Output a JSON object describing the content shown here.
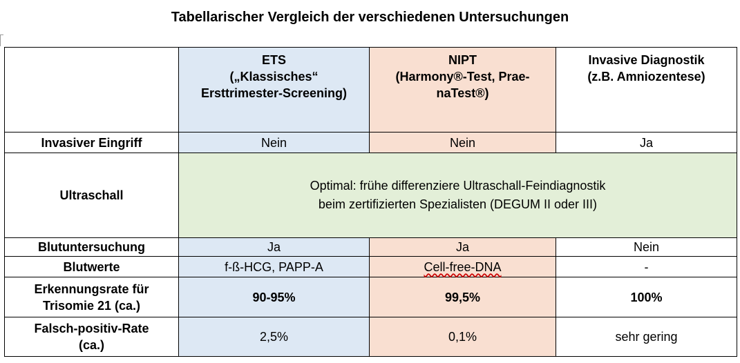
{
  "title": "Tabellarischer Vergleich der verschiedenen Untersuchungen",
  "colors": {
    "ets": "#dde8f4",
    "nipt": "#f9dfd1",
    "ultrasound": "#e3efd8"
  },
  "columns": {
    "ets": [
      "ETS",
      "(„Klassisches“",
      "Ersttrimester-Screening)"
    ],
    "nipt": [
      "NIPT",
      "(Harmony®-Test, Prae-",
      "naTest®)"
    ],
    "invasive": [
      "Invasive Diagnostik",
      "(z.B. Amniozentese)"
    ]
  },
  "rows": {
    "invasiver_eingriff": {
      "label": "Invasiver Eingriff",
      "ets": "Nein",
      "nipt": "Nein",
      "invasive": "Ja"
    },
    "ultraschall": {
      "label": "Ultraschall",
      "text": [
        "Optimal: frühe differenziere Ultraschall-Feindiagnostik",
        "beim zertifizierten Spezialisten (DEGUM II oder III)"
      ]
    },
    "blutuntersuchung": {
      "label": "Blutuntersuchung",
      "ets": "Ja",
      "nipt": "Ja",
      "invasive": "Nein"
    },
    "blutwerte": {
      "label": "Blutwerte",
      "ets": "f-ß-HCG, PAPP-A",
      "nipt": "Cell-free-DNA",
      "invasive": "-"
    },
    "erkennungsrate": {
      "label": [
        "Erkennungsrate für",
        "Trisomie 21 (ca.)"
      ],
      "ets": "90-95%",
      "nipt": "99,5%",
      "invasive": "100%"
    },
    "falsch_positiv": {
      "label": [
        "Falsch-positiv-Rate",
        "(ca.)"
      ],
      "ets": "2,5%",
      "nipt": "0,1%",
      "invasive": "sehr gering"
    }
  }
}
